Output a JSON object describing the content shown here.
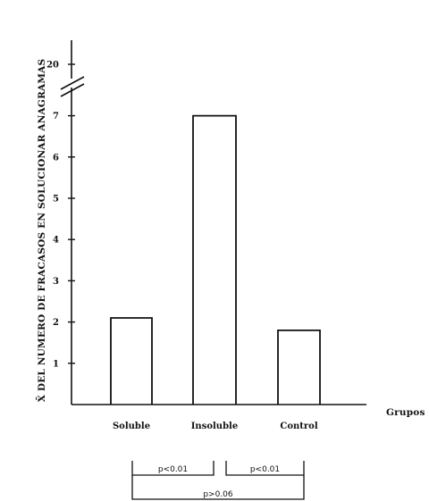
{
  "chart_data": {
    "type": "bar",
    "ylabel": "X̄ DEL NUMERO DE FRACASOS EN SOLUCIONAR ANAGRAMAS",
    "xlabel": "Grupos",
    "categories": [
      "Soluble",
      "Insoluble",
      "Control"
    ],
    "values": [
      2.1,
      7.0,
      1.8
    ],
    "y_ticks": [
      "1",
      "2",
      "3",
      "4",
      "5",
      "6",
      "7",
      "20"
    ],
    "axis_break": {
      "between": [
        7,
        20
      ]
    },
    "grid": false,
    "significance": [
      {
        "label": "p<0.01",
        "from": "Soluble",
        "to": "Insoluble"
      },
      {
        "label": "p<0.01",
        "from": "Insoluble",
        "to": "Control"
      },
      {
        "label": "p>0.06",
        "from": "Soluble",
        "to": "Control"
      }
    ]
  }
}
